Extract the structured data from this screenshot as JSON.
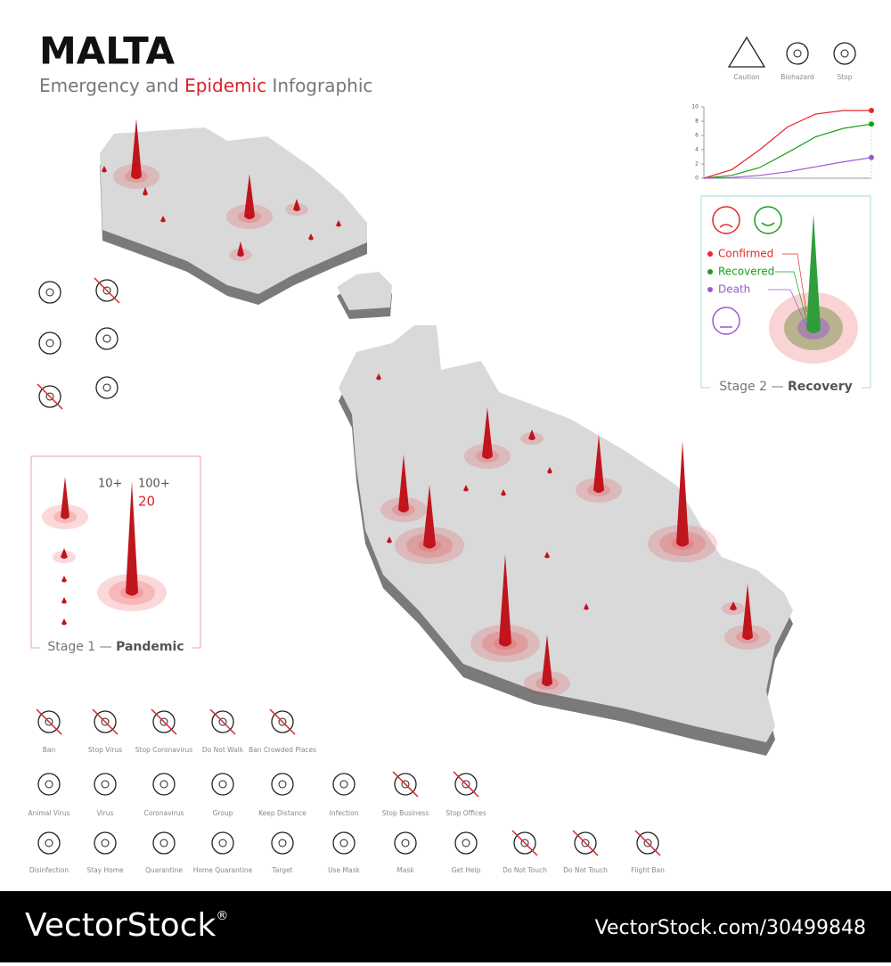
{
  "header": {
    "title": "MALTA",
    "subtitle": [
      "Emergency and ",
      "Epidemic",
      " Infographic"
    ]
  },
  "top_icons": [
    "Caution",
    "Biohazard",
    "Stop"
  ],
  "chart_data": {
    "type": "line",
    "categories": [
      null,
      null,
      null,
      null,
      null,
      null,
      null
    ],
    "ylim": [
      0,
      10
    ],
    "yticks": [
      0,
      2,
      4,
      6,
      8,
      10
    ],
    "grid": false,
    "series": [
      {
        "name": "Confirmed",
        "color": "#e8262b",
        "values": [
          0,
          1.2,
          4.0,
          7.2,
          9.0,
          9.5,
          9.5
        ]
      },
      {
        "name": "Recovered",
        "color": "#1a9e1a",
        "values": [
          0,
          0.4,
          1.5,
          3.6,
          5.8,
          7.0,
          7.6
        ]
      },
      {
        "name": "Death",
        "color": "#9b59d0",
        "values": [
          0,
          0.1,
          0.4,
          0.9,
          1.6,
          2.3,
          2.9
        ]
      }
    ]
  },
  "stage1": {
    "small_label": "10+",
    "big_label": "100+",
    "big_count": "20",
    "caption": [
      "Stage 1 — ",
      "Pandemic"
    ]
  },
  "stage2": {
    "caption": [
      "Stage 2 — ",
      "Recovery"
    ]
  },
  "icon_rows": [
    [
      "Ban",
      "Stop Virus",
      "Stop Coronavirus",
      "Do Not Walk",
      "Ban Crowded Places"
    ],
    [
      "Animal Virus",
      "Virus",
      "Coronavirus",
      "Group",
      "Keep Distance",
      "Infection",
      "Stop Business",
      "Stop Offices"
    ],
    [
      "Disinfection",
      "Stay Home",
      "Quarantine",
      "Home Quarantine",
      "Target",
      "Use Mask",
      "Mask",
      "Get Help",
      "Do Not Touch",
      "Do Not Touch",
      "Flight Ban"
    ]
  ],
  "watermark": {
    "brand": "VectorStock",
    "mark": "®",
    "url": "VectorStock.com/30499848"
  }
}
